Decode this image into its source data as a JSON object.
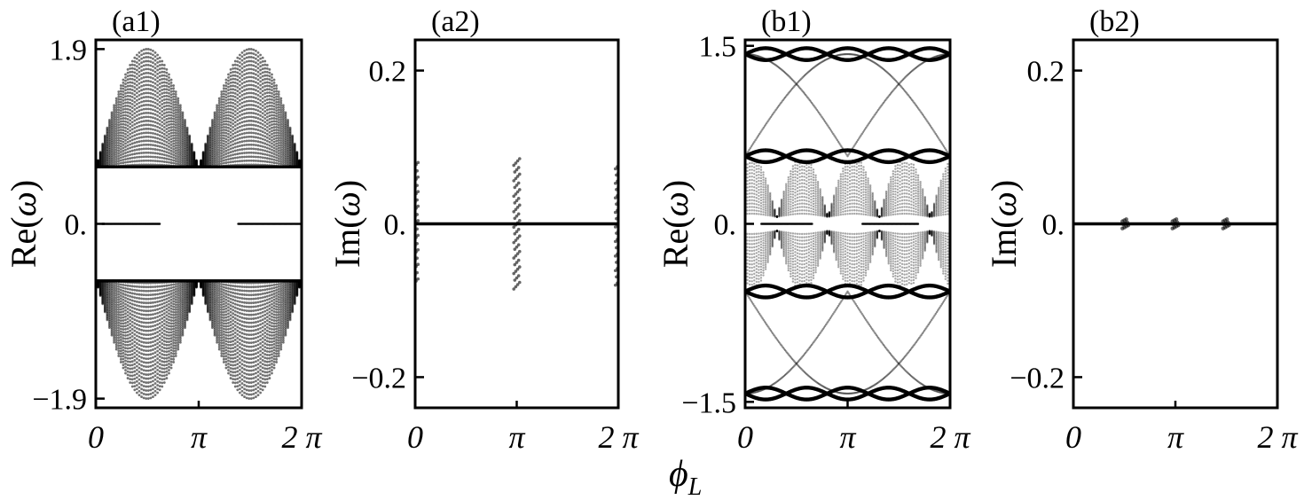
{
  "figure": {
    "shared_xlabel_symbol": "ϕ",
    "shared_xlabel_sub": "L"
  },
  "chart_data": [
    {
      "id": "a1",
      "type": "scatter",
      "panel_label": "(a1)",
      "ylabel_prefix": "Re(",
      "ylabel_symbol": "ω",
      "ylabel_suffix": ")",
      "xlim": [
        0,
        6.2832
      ],
      "ylim": [
        -2.0,
        2.0
      ],
      "xticks": [
        0,
        3.1416,
        6.2832
      ],
      "xtick_labels": [
        "0",
        "π",
        "2 π"
      ],
      "yticks": [
        1.9,
        0.0,
        -1.9
      ],
      "ytick_labels": [
        "1.9",
        "0.",
        "−1.9"
      ],
      "bands": [
        {
          "description": "bulk lobes",
          "amplitude": 1.9,
          "period": 3.1416,
          "inner": 0.6
        },
        {
          "description": "gap edges",
          "values": [
            0.62,
            -0.62
          ]
        }
      ],
      "zero_mode": {
        "y": 0.0,
        "x_ranges": [
          [
            0.2,
            1.95
          ],
          [
            4.35,
            6.28
          ]
        ]
      }
    },
    {
      "id": "a2",
      "type": "scatter",
      "panel_label": "(a2)",
      "ylabel_prefix": "Im(",
      "ylabel_symbol": "ω",
      "ylabel_suffix": ")",
      "xlim": [
        0,
        6.2832
      ],
      "ylim": [
        -0.24,
        0.24
      ],
      "xticks": [
        0,
        3.1416,
        6.2832
      ],
      "xtick_labels": [
        "0",
        "π",
        "2 π"
      ],
      "yticks": [
        0.2,
        0.0,
        -0.2
      ],
      "ytick_labels": [
        "0.2",
        "0.",
        "−0.2"
      ],
      "zero_line": 0.0,
      "imag_clusters": [
        {
          "x": 0.0,
          "max_abs": 0.08
        },
        {
          "x": 3.1416,
          "max_abs": 0.085
        },
        {
          "x": 6.2832,
          "max_abs": 0.08
        }
      ]
    },
    {
      "id": "b1",
      "type": "scatter",
      "panel_label": "(b1)",
      "ylabel_prefix": "Re(",
      "ylabel_symbol": "ω",
      "ylabel_suffix": ")",
      "xlim": [
        0,
        6.2832
      ],
      "ylim": [
        -1.55,
        1.55
      ],
      "xticks": [
        0,
        3.1416,
        6.2832
      ],
      "xtick_labels": [
        "0",
        "π",
        "2 π"
      ],
      "yticks": [
        1.5,
        0.0,
        -1.5
      ],
      "ytick_labels": [
        "1.5",
        "0.",
        "−1.5"
      ],
      "flat_bands": [
        1.43,
        0.57,
        -0.57,
        -1.43
      ],
      "zero_mode": {
        "y": 0.0,
        "x_ranges": [
          [
            0.5,
            2.05
          ],
          [
            3.6,
            5.3
          ]
        ]
      }
    },
    {
      "id": "b2",
      "type": "scatter",
      "panel_label": "(b2)",
      "ylabel_prefix": "Im(",
      "ylabel_symbol": "ω",
      "ylabel_suffix": ")",
      "xlim": [
        0,
        6.2832
      ],
      "ylim": [
        -0.24,
        0.24
      ],
      "xticks": [
        0,
        3.1416,
        6.2832
      ],
      "xtick_labels": [
        "0",
        "π",
        "2 π"
      ],
      "yticks": [
        0.2,
        0.0,
        -0.2
      ],
      "ytick_labels": [
        "0.2",
        "0.",
        "−0.2"
      ],
      "zero_line": 0.0,
      "imag_clusters": [
        {
          "x": 1.6,
          "max_abs": 0.006
        },
        {
          "x": 3.1416,
          "max_abs": 0.006
        },
        {
          "x": 4.7,
          "max_abs": 0.006
        }
      ]
    }
  ]
}
